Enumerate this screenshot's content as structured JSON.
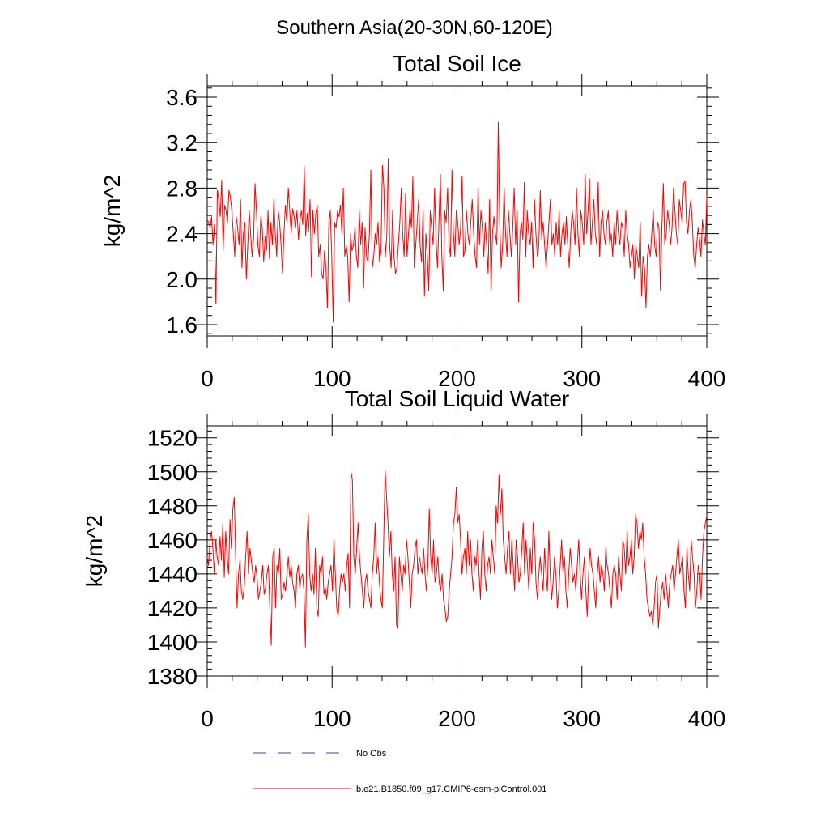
{
  "suptitle": "Southern Asia(20-30N,60-120E)",
  "legend": {
    "items": [
      {
        "label": "No Obs",
        "style": "dashed",
        "color": "#3b4a8c"
      },
      {
        "label": "b.e21.B1850.f09_g17.CMIP6-esm-piControl.001",
        "style": "solid",
        "color": "#ff0000"
      }
    ]
  },
  "colors": {
    "series": "#ff0000",
    "axes": "#000000"
  },
  "chart_data": [
    {
      "type": "line",
      "title": "Total Soil Ice",
      "xlabel": "",
      "ylabel": "kg/m^2",
      "xlim": [
        0,
        400
      ],
      "ylim": [
        1.5,
        3.7
      ],
      "xticks": [
        0,
        100,
        200,
        300,
        400
      ],
      "yticks": [
        1.6,
        2.0,
        2.4,
        2.8,
        3.2,
        3.6
      ],
      "ytick_labels": [
        "1.6",
        "2.0",
        "2.4",
        "2.8",
        "3.2",
        "3.6"
      ],
      "grid": false,
      "series": [
        {
          "values": [
            2.52,
            2.5,
            2.45,
            2.55,
            2.3,
            2.48,
            1.78,
            2.78,
            2.7,
            2.55,
            2.87,
            2.25,
            2.65,
            2.6,
            2.5,
            2.78,
            2.72,
            2.6,
            2.4,
            2.2,
            2.55,
            2.45,
            2.3,
            2.7,
            2.1,
            2.4,
            2.5,
            2.0,
            2.3,
            2.6,
            2.4,
            2.2,
            2.35,
            2.84,
            2.6,
            2.3,
            2.2,
            2.55,
            2.45,
            2.15,
            2.38,
            2.25,
            2.6,
            2.18,
            2.5,
            2.3,
            2.7,
            2.4,
            2.2,
            2.6,
            2.5,
            2.3,
            2.05,
            2.4,
            2.65,
            2.5,
            2.8,
            2.6,
            2.4,
            2.62,
            2.55,
            2.45,
            2.6,
            2.35,
            2.52,
            2.6,
            2.48,
            2.99,
            2.38,
            2.58,
            2.42,
            2.7,
            2.02,
            2.6,
            2.4,
            2.58,
            2.65,
            2.2,
            2.3,
            2.05,
            2.0,
            2.25,
            2.1,
            1.75,
            2.5,
            2.6,
            2.2,
            1.62,
            2.5,
            2.45,
            2.6,
            2.55,
            2.65,
            2.4,
            2.8,
            2.2,
            2.3,
            2.2,
            1.8,
            2.4,
            2.25,
            2.3,
            2.45,
            2.2,
            2.1,
            2.6,
            2.3,
            2.5,
            1.92,
            2.45,
            2.2,
            2.15,
            2.4,
            2.96,
            2.1,
            2.2,
            2.4,
            2.3,
            2.5,
            2.15,
            2.25,
            3.0,
            2.8,
            2.2,
            2.38,
            3.06,
            2.3,
            2.1,
            2.6,
            2.2,
            2.05,
            2.1,
            2.3,
            2.5,
            2.8,
            2.4,
            2.2,
            2.75,
            2.2,
            2.4,
            2.6,
            2.45,
            2.9,
            2.1,
            2.3,
            2.5,
            2.7,
            2.3,
            2.15,
            2.6,
            1.85,
            2.4,
            2.2,
            1.9,
            2.6,
            2.45,
            2.3,
            2.8,
            2.35,
            2.1,
            2.5,
            2.92,
            2.2,
            1.9,
            2.6,
            2.5,
            2.8,
            2.3,
            2.2,
            2.96,
            2.4,
            2.2,
            2.6,
            2.5,
            2.3,
            2.45,
            2.9,
            2.2,
            2.25,
            2.6,
            2.4,
            2.3,
            2.5,
            2.7,
            2.4,
            2.2,
            2.1,
            2.8,
            2.3,
            2.6,
            2.45,
            2.2,
            2.5,
            2.3,
            2.05,
            2.7,
            1.9,
            2.4,
            2.55,
            2.4,
            2.3,
            3.38,
            2.5,
            2.1,
            2.3,
            2.8,
            2.4,
            2.2,
            2.6,
            2.4,
            2.2,
            2.45,
            2.8,
            2.3,
            2.6,
            1.8,
            2.4,
            2.5,
            2.35,
            2.85,
            2.2,
            2.6,
            2.4,
            2.3,
            2.5,
            2.1,
            2.7,
            2.4,
            2.2,
            2.3,
            2.78,
            2.35,
            2.5,
            2.3,
            2.1,
            2.3,
            2.5,
            2.7,
            2.3,
            2.4,
            2.2,
            2.5,
            2.3,
            2.6,
            2.2,
            2.4,
            2.5,
            2.3,
            2.55,
            2.3,
            2.1,
            2.4,
            2.6,
            2.5,
            2.3,
            2.8,
            2.4,
            2.2,
            2.6,
            2.5,
            2.3,
            2.92,
            2.4,
            2.6,
            2.88,
            2.3,
            2.5,
            2.7,
            2.4,
            2.3,
            2.85,
            2.2,
            2.5,
            2.6,
            2.4,
            2.3,
            2.5,
            2.6,
            2.3,
            2.4,
            2.2,
            2.5,
            2.3,
            2.6,
            2.4,
            2.3,
            2.5,
            2.45,
            2.2,
            2.6,
            2.4,
            2.3,
            2.1,
            2.2,
            2.3,
            2.0,
            2.3,
            2.2,
            2.1,
            2.5,
            1.85,
            2.2,
            2.1,
            1.75,
            2.2,
            2.3,
            2.2,
            2.4,
            2.6,
            2.3,
            2.2,
            2.5,
            2.45,
            1.9,
            2.45,
            2.84,
            2.3,
            2.4,
            2.6,
            2.5,
            2.3,
            2.45,
            2.8,
            2.6,
            2.4,
            2.3,
            2.7,
            2.6,
            2.5,
            2.84,
            2.86,
            2.5,
            2.4,
            2.6,
            2.7,
            2.5,
            2.2,
            2.1,
            2.3,
            2.45,
            2.35,
            2.2,
            2.52,
            2.4,
            2.3,
            2.73
          ]
        }
      ]
    },
    {
      "type": "line",
      "title": "Total Soil Liquid Water",
      "xlabel": "",
      "ylabel": "kg/m^2",
      "xlim": [
        0,
        400
      ],
      "ylim": [
        1380,
        1527
      ],
      "xticks": [
        0,
        100,
        200,
        300,
        400
      ],
      "yticks": [
        1380,
        1400,
        1420,
        1440,
        1460,
        1480,
        1500,
        1520
      ],
      "ytick_labels": [
        "1380",
        "1400",
        "1420",
        "1440",
        "1460",
        "1480",
        "1500",
        "1520"
      ],
      "grid": false,
      "series": [
        {
          "values": [
            1450,
            1445,
            1460,
            1465,
            1455,
            1440,
            1460,
            1450,
            1445,
            1462,
            1448,
            1470,
            1438,
            1465,
            1450,
            1440,
            1472,
            1455,
            1478,
            1485,
            1450,
            1420,
            1440,
            1448,
            1430,
            1425,
            1432,
            1450,
            1465,
            1440,
            1455,
            1448,
            1440,
            1435,
            1445,
            1438,
            1425,
            1430,
            1435,
            1445,
            1428,
            1432,
            1440,
            1445,
            1420,
            1398,
            1450,
            1455,
            1420,
            1445,
            1440,
            1455,
            1425,
            1428,
            1435,
            1430,
            1440,
            1450,
            1438,
            1445,
            1435,
            1430,
            1420,
            1440,
            1445,
            1432,
            1438,
            1440,
            1430,
            1397,
            1460,
            1475,
            1440,
            1430,
            1440,
            1428,
            1455,
            1420,
            1415,
            1445,
            1440,
            1450,
            1428,
            1432,
            1425,
            1435,
            1440,
            1445,
            1430,
            1460,
            1440,
            1420,
            1415,
            1430,
            1440,
            1435,
            1440,
            1430,
            1445,
            1452,
            1420,
            1500,
            1495,
            1450,
            1440,
            1455,
            1470,
            1450,
            1440,
            1430,
            1420,
            1435,
            1440,
            1430,
            1425,
            1420,
            1440,
            1450,
            1470,
            1440,
            1450,
            1435,
            1425,
            1420,
            1460,
            1501,
            1485,
            1470,
            1450,
            1465,
            1440,
            1430,
            1450,
            1410,
            1408,
            1450,
            1440,
            1430,
            1445,
            1440,
            1460,
            1450,
            1435,
            1420,
            1440,
            1445,
            1455,
            1460,
            1440,
            1450,
            1445,
            1440,
            1455,
            1440,
            1430,
            1445,
            1478,
            1450,
            1440,
            1460,
            1435,
            1440,
            1450,
            1435,
            1430,
            1440,
            1425,
            1420,
            1412,
            1415,
            1430,
            1440,
            1450,
            1470,
            1475,
            1491,
            1470,
            1475,
            1460,
            1440,
            1450,
            1455,
            1440,
            1465,
            1445,
            1460,
            1440,
            1430,
            1450,
            1445,
            1460,
            1440,
            1425,
            1455,
            1465,
            1440,
            1430,
            1445,
            1450,
            1440,
            1460,
            1450,
            1440,
            1480,
            1470,
            1498,
            1475,
            1490,
            1460,
            1450,
            1440,
            1455,
            1465,
            1440,
            1460,
            1445,
            1430,
            1460,
            1450,
            1435,
            1440,
            1455,
            1470,
            1440,
            1460,
            1445,
            1430,
            1455,
            1440,
            1470,
            1460,
            1435,
            1425,
            1440,
            1450,
            1440,
            1430,
            1455,
            1440,
            1430,
            1465,
            1440,
            1425,
            1435,
            1450,
            1440,
            1420,
            1430,
            1445,
            1460,
            1440,
            1450,
            1430,
            1420,
            1440,
            1455,
            1445,
            1435,
            1440,
            1430,
            1445,
            1460,
            1440,
            1425,
            1440,
            1450,
            1430,
            1415,
            1440,
            1455,
            1445,
            1440,
            1430,
            1420,
            1440,
            1450,
            1435,
            1445,
            1440,
            1430,
            1455,
            1445,
            1440,
            1430,
            1420,
            1440,
            1445,
            1440,
            1425,
            1450,
            1440,
            1430,
            1460,
            1455,
            1440,
            1465,
            1445,
            1450,
            1460,
            1440,
            1450,
            1475,
            1470,
            1455,
            1465,
            1460,
            1470,
            1450,
            1440,
            1425,
            1420,
            1415,
            1418,
            1410,
            1420,
            1435,
            1440,
            1408,
            1420,
            1430,
            1435,
            1425,
            1440,
            1430,
            1420,
            1435,
            1440,
            1445,
            1430,
            1440,
            1450,
            1460,
            1440,
            1445,
            1450,
            1430,
            1420,
            1455,
            1440,
            1430,
            1460,
            1450,
            1440,
            1420,
            1430,
            1445,
            1440,
            1425,
            1450,
            1465,
            1470,
            1474
          ]
        }
      ]
    }
  ]
}
